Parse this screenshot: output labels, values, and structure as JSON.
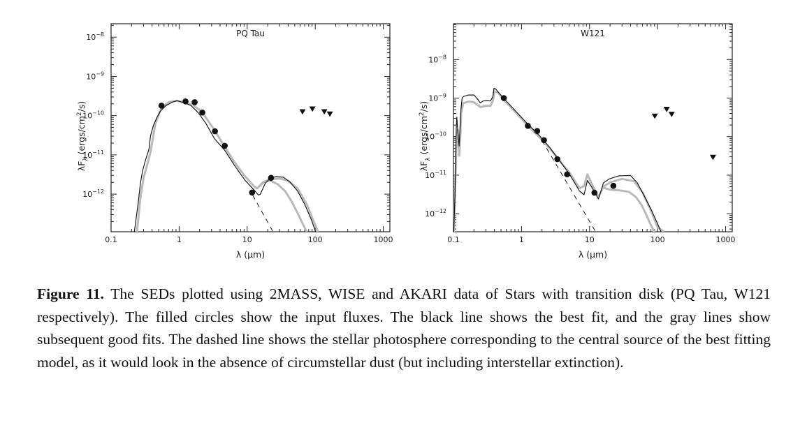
{
  "chart_data": [
    {
      "type": "line",
      "title": "PQ Tau",
      "xlabel": "λ (μm)",
      "ylabel": "λF_λ (ergs/cm²/s)",
      "xscale": "log",
      "yscale": "log",
      "xlim": [
        0.1,
        1250
      ],
      "ylim": [
        1.1e-13,
        2.2e-08
      ],
      "x_ticks": [
        0.1,
        1,
        10,
        100,
        1000
      ],
      "x_tick_labels": [
        "0.1",
        "1",
        "10",
        "100",
        "1000"
      ],
      "y_ticks": [
        1e-08,
        1e-09,
        1e-10,
        1e-11,
        1e-12
      ],
      "y_tick_exponents": [
        "-8",
        "-9",
        "-10",
        "-11",
        "-12"
      ],
      "grid": false,
      "legend": "none",
      "series": [
        {
          "name": "input fluxes",
          "marker": "filled-circle",
          "x": [
            0.55,
            1.24,
            1.69,
            2.19,
            3.36,
            4.68,
            11.8,
            22.4
          ],
          "y": [
            1.8e-10,
            2.3e-10,
            2.2e-10,
            1.2e-10,
            4e-11,
            1.7e-11,
            1.1e-12,
            2.6e-12
          ]
        },
        {
          "name": "upper limits",
          "marker": "down-triangle",
          "x": [
            65,
            91,
            136,
            164
          ],
          "y": [
            1.26e-10,
            1.48e-10,
            1.26e-10,
            1.1e-10
          ]
        },
        {
          "name": "best fit",
          "style": "black-line",
          "x": [
            0.22,
            0.25,
            0.27,
            0.29,
            0.32,
            0.36,
            0.38,
            0.42,
            0.47,
            0.53,
            0.64,
            0.79,
            0.93,
            1.23,
            1.5,
            1.9,
            2.5,
            3.3,
            4.7,
            6.5,
            9.2,
            12.5,
            14.6,
            15.5,
            18.5,
            22.0,
            27.0,
            34.0,
            43.0,
            55.0,
            70.0,
            88.0,
            101.0
          ],
          "y": [
            1.1e-13,
            6e-13,
            1.9e-12,
            3.9e-12,
            7.3e-12,
            1.4e-11,
            3.1e-11,
            5.7e-11,
            8.9e-11,
            1.3e-10,
            1.8e-10,
            2.2e-10,
            2.4e-10,
            2.1e-10,
            1.8e-10,
            1.2e-10,
            6.2e-11,
            2.6e-11,
            1.3e-11,
            5.4e-12,
            2.3e-12,
            1.3e-12,
            9.5e-13,
            9.8e-13,
            1.9e-12,
            2.6e-12,
            2.8e-12,
            2.7e-12,
            2e-12,
            1.2e-12,
            5.5e-13,
            2.2e-13,
            1.1e-13
          ]
        },
        {
          "name": "good fits (upper)",
          "style": "gray-line",
          "x": [
            0.24,
            0.27,
            0.3,
            0.34,
            0.38,
            0.45,
            0.55,
            0.7,
            0.9,
            1.2,
            1.6,
            2.2,
            3.3,
            4.7,
            6.5,
            9.2,
            12.5,
            14.0,
            17.0,
            22.0,
            30.0,
            40.0,
            55.0,
            75.0,
            95.0,
            110.0
          ],
          "y": [
            1.1e-13,
            8e-13,
            2.6e-12,
            5.7e-12,
            1.2e-11,
            6.5e-11,
            1.6e-10,
            2.2e-10,
            2.4e-10,
            2.2e-10,
            1.9e-10,
            1.2e-10,
            4.3e-11,
            1.6e-11,
            6.5e-12,
            2.9e-12,
            1.6e-12,
            1.4e-12,
            2e-12,
            2.4e-12,
            2.5e-12,
            2.2e-12,
            1.4e-12,
            5.5e-13,
            2e-13,
            1.1e-13
          ]
        },
        {
          "name": "good fits (lower)",
          "style": "gray-line",
          "x": [
            14.0,
            18.0,
            22.0,
            28.0,
            36.0,
            45.0,
            55.0,
            65.0,
            75.0
          ],
          "y": [
            1.4e-12,
            2.1e-12,
            2.2e-12,
            1.8e-12,
            1.2e-12,
            6.5e-13,
            3.3e-13,
            1.8e-13,
            1.1e-13
          ]
        },
        {
          "name": "stellar photosphere",
          "style": "dashed-line",
          "x": [
            12.0,
            24.0
          ],
          "y": [
            9.5e-13,
            1.1e-13
          ]
        }
      ]
    },
    {
      "type": "line",
      "title": "W121",
      "xlabel": "λ (μm)",
      "ylabel": "λF_λ (ergs/cm²/s)",
      "xscale": "log",
      "yscale": "log",
      "xlim": [
        0.1,
        1250
      ],
      "ylim": [
        3.4e-13,
        8.5e-08
      ],
      "x_ticks": [
        0.1,
        1,
        10,
        100,
        1000
      ],
      "x_tick_labels": [
        "0.1",
        "1",
        "10",
        "100",
        "1000"
      ],
      "y_ticks": [
        1e-08,
        1e-09,
        1e-10,
        1e-11,
        1e-12
      ],
      "y_tick_exponents": [
        "-8",
        "-9",
        "-10",
        "-11",
        "-12"
      ],
      "grid": false,
      "legend": "none",
      "series": [
        {
          "name": "input fluxes",
          "marker": "filled-circle",
          "x": [
            0.55,
            1.24,
            1.7,
            2.14,
            3.36,
            4.68,
            11.8,
            22.4
          ],
          "y": [
            1e-09,
            1.9e-10,
            1.4e-10,
            8.1e-11,
            2.6e-11,
            1.05e-11,
            3.5e-12,
            5.3e-12
          ]
        },
        {
          "name": "upper limits",
          "marker": "down-triangle",
          "x": [
            91,
            136,
            161,
            652
          ],
          "y": [
            3.4e-10,
            5.1e-10,
            3.8e-10,
            2.9e-11
          ]
        },
        {
          "name": "best fit",
          "style": "black-line",
          "x": [
            0.101,
            0.105,
            0.11,
            0.112,
            0.116,
            0.121,
            0.124,
            0.129,
            0.134,
            0.141,
            0.166,
            0.201,
            0.226,
            0.248,
            0.272,
            0.31,
            0.35,
            0.38,
            0.39,
            0.395,
            0.42,
            0.46,
            0.55,
            0.8,
            1.24,
            1.8,
            2.6,
            3.6,
            5.0,
            7.1,
            8.3,
            9.3,
            11.0,
            13.5,
            16.0,
            19.5,
            27.0,
            40.0,
            50.0,
            63.0,
            80.0,
            100.0,
            112.0
          ],
          "y": [
            3.4e-13,
            2.6e-12,
            1.6e-10,
            3.2e-10,
            1.3e-10,
            5.7e-11,
            1.3e-10,
            5.3e-10,
            1e-09,
            1.1e-09,
            1.2e-09,
            1.2e-09,
            9.4e-10,
            7.5e-10,
            8.4e-10,
            8.6e-10,
            8.4e-10,
            1.1e-09,
            1.6e-09,
            1.8e-09,
            1.7e-09,
            1.4e-09,
            9.8e-10,
            4.8e-10,
            2.1e-10,
            1.1e-10,
            5.2e-11,
            2.4e-11,
            1.1e-11,
            3.9e-12,
            3.1e-12,
            7.3e-12,
            4.6e-12,
            2.4e-12,
            6.3e-12,
            8e-12,
            9.6e-12,
            9.8e-12,
            6.4e-12,
            3e-12,
            1.3e-12,
            5.5e-13,
            3.4e-13
          ]
        },
        {
          "name": "good fits (upper)",
          "style": "gray-line",
          "x": [
            0.102,
            0.11,
            0.116,
            0.122,
            0.126,
            0.13,
            0.14,
            0.17,
            0.2,
            0.25,
            0.3,
            0.35,
            0.38,
            0.4,
            0.45,
            0.55,
            0.8,
            1.24,
            1.8,
            2.6,
            3.6,
            5.0,
            7.1,
            8.3,
            9.3,
            11.0,
            13.5,
            16.0,
            20.0,
            30.0,
            45.0,
            60.0,
            80.0,
            100.0,
            125.0
          ],
          "y": [
            3.4e-13,
            5e-11,
            1.5e-10,
            3.2e-11,
            1.1e-10,
            4.2e-10,
            7.4e-10,
            8.2e-10,
            7.8e-10,
            5.8e-10,
            6.3e-10,
            6.3e-10,
            8.5e-10,
            1.5e-09,
            1.4e-09,
            9e-10,
            4.5e-10,
            1.9e-10,
            1e-10,
            5e-11,
            2.4e-11,
            1.2e-11,
            4.6e-12,
            5.2e-12,
            1.05e-11,
            5.5e-12,
            2.7e-12,
            5e-12,
            6.5e-12,
            8e-12,
            7e-12,
            3.6e-12,
            1.2e-12,
            4.4e-13,
            3.4e-13
          ]
        },
        {
          "name": "good fits (lower)",
          "style": "gray-line",
          "x": [
            16.0,
            20.0,
            28.0,
            38.0,
            48.0,
            58.0,
            68.0,
            80.0,
            90.0
          ],
          "y": [
            4.7e-12,
            4.2e-12,
            4e-12,
            3.7e-12,
            2.7e-12,
            1.7e-12,
            9.5e-13,
            5e-13,
            3.4e-13
          ]
        },
        {
          "name": "stellar photosphere",
          "style": "dashed-line",
          "x": [
            2.0,
            12.3
          ],
          "y": [
            8e-11,
            3.4e-13
          ]
        }
      ]
    }
  ],
  "caption": {
    "label": "Figure 11.",
    "text": " The SEDs plotted using 2MASS, WISE and AKARI data of Stars with transition disk (PQ Tau, W121 respectively).  The filled circles show the input fluxes.  The black line shows the best fit, and the gray lines show subsequent good fits.  The dashed line shows the stellar photosphere corresponding to the central source of the best fitting model, as it would look in the absence of circumstellar dust (but including interstellar extinction)."
  },
  "colors": {
    "best_fit": "#1a1a1a",
    "good_fits": "#b9b9b9",
    "points": "#111111",
    "frame": "#222222"
  }
}
